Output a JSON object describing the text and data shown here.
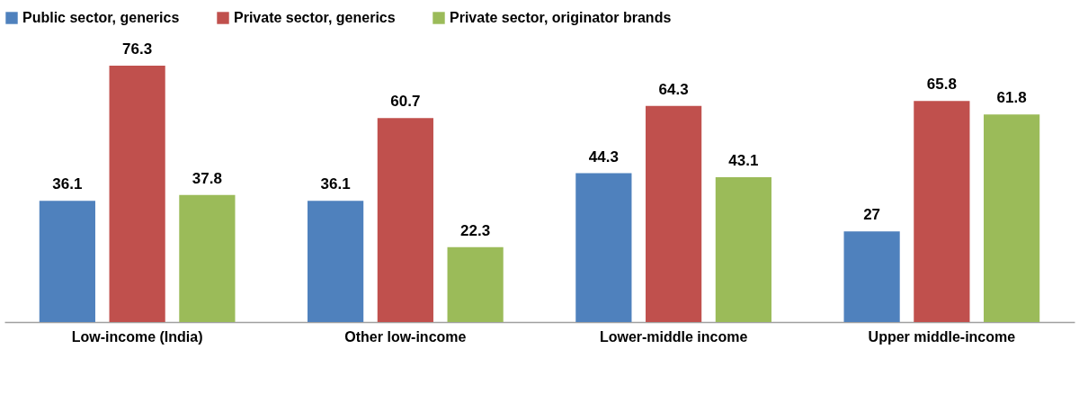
{
  "chart_data": {
    "type": "bar",
    "categories": [
      "Low-income (India)",
      "Other low-income",
      "Lower-middle income",
      "Upper middle-income"
    ],
    "series": [
      {
        "name": "Public sector, generics",
        "color": "#4f81bd",
        "values": [
          36.1,
          36.1,
          44.3,
          27
        ]
      },
      {
        "name": "Private sector, generics",
        "color": "#c0504d",
        "values": [
          76.3,
          60.7,
          64.3,
          65.8
        ]
      },
      {
        "name": "Private sector, originator brands",
        "color": "#9bbb59",
        "values": [
          37.8,
          22.3,
          43.1,
          61.8
        ]
      }
    ],
    "data_labels": true,
    "legend": "top",
    "grid": false,
    "tick_labels": "x"
  }
}
